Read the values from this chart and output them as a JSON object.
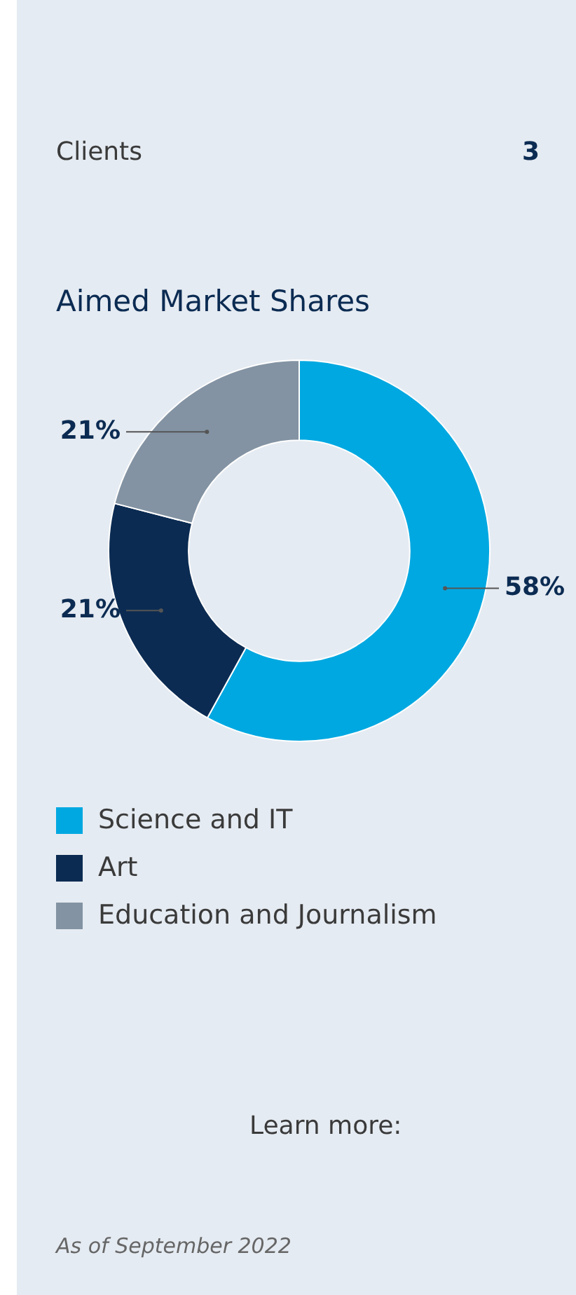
{
  "chart_data": {
    "type": "donut",
    "title": "Aimed Market Shares",
    "categories": [
      "Science and IT",
      "Art",
      "Education and Journalism"
    ],
    "values": [
      58,
      21,
      21
    ],
    "colors": [
      "#00a8e1",
      "#0b2b52",
      "#8393a3"
    ],
    "value_labels": [
      "58%",
      "21%",
      "21%"
    ],
    "legend": "bottom",
    "annotations": [
      "Clients",
      "3",
      "Learn more:",
      "As of September 2022"
    ]
  }
}
